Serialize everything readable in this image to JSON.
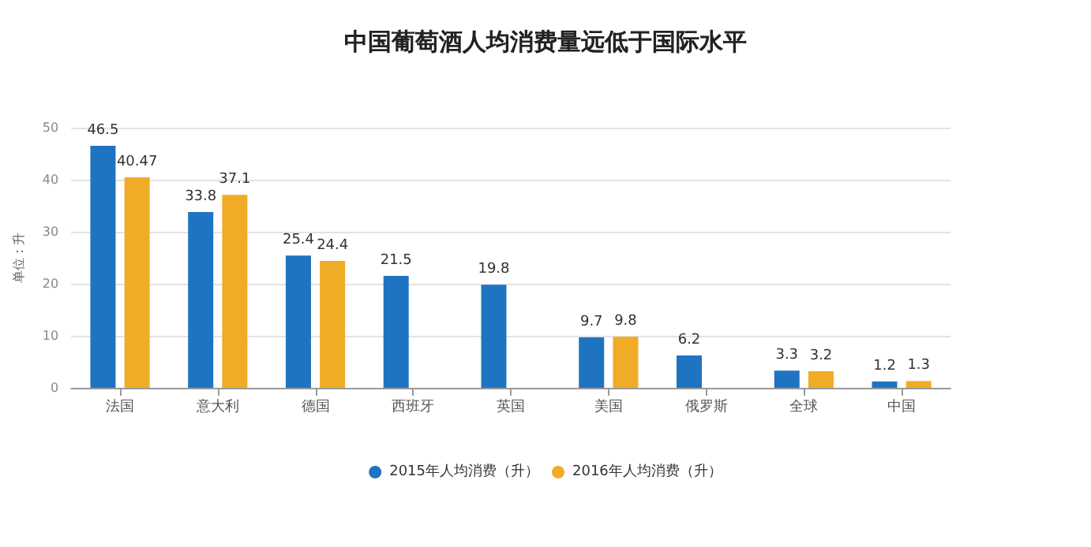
{
  "chart_data": {
    "type": "bar",
    "title": "中国葡萄酒人均消费量远低于国际水平",
    "ylabel": "单位：升",
    "categories": [
      "法国",
      "意大利",
      "德国",
      "西班牙",
      "英国",
      "美国",
      "俄罗斯",
      "全球",
      "中国"
    ],
    "series": [
      {
        "name": "2015年人均消费（升）",
        "color": "#1f74c2",
        "values": [
          46.5,
          33.8,
          25.4,
          21.5,
          19.8,
          9.7,
          6.2,
          3.3,
          1.2
        ]
      },
      {
        "name": "2016年人均消费（升）",
        "color": "#f0ac26",
        "values": [
          40.47,
          37.1,
          24.4,
          null,
          null,
          9.8,
          null,
          3.2,
          1.3
        ]
      }
    ],
    "ylim": [
      0,
      50
    ],
    "yticks": [
      0,
      10,
      20,
      30,
      40,
      50
    ],
    "grid": "y",
    "legend": "bottom",
    "data_labels": true
  }
}
